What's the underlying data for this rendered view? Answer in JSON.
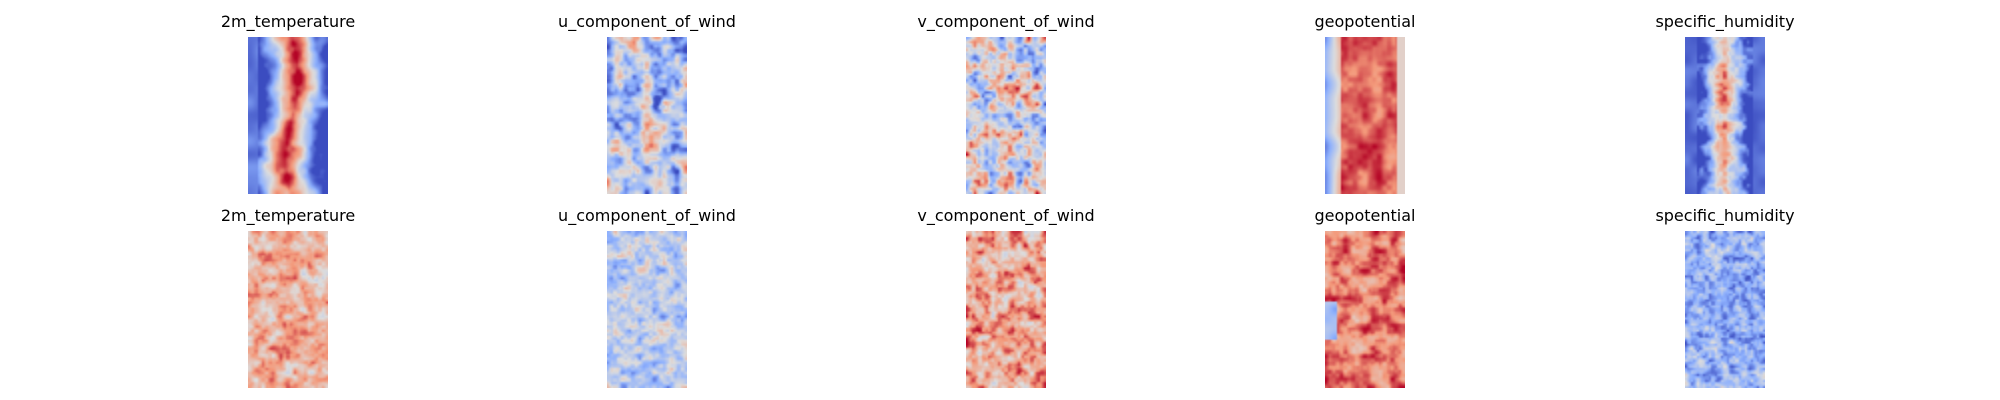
{
  "chart_data": {
    "type": "heatmap",
    "colormap": "coolwarm",
    "colors": {
      "low": "#3b4cc0",
      "mid": "#dddddd",
      "high": "#b40426"
    },
    "grid": false,
    "axes": "off",
    "rows": [
      {
        "panels": [
          {
            "title": "2m_temperature",
            "pattern": "temp"
          },
          {
            "title": "u_component_of_wind",
            "pattern": "uwind"
          },
          {
            "title": "v_component_of_wind",
            "pattern": "vwind"
          },
          {
            "title": "geopotential",
            "pattern": "geo"
          },
          {
            "title": "specific_humidity",
            "pattern": "hum"
          }
        ]
      },
      {
        "panels": [
          {
            "title": "2m_temperature",
            "pattern": "temp_pred"
          },
          {
            "title": "u_component_of_wind",
            "pattern": "uwind_pred"
          },
          {
            "title": "v_component_of_wind",
            "pattern": "vwind_pred"
          },
          {
            "title": "geopotential",
            "pattern": "geo_pred"
          },
          {
            "title": "specific_humidity",
            "pattern": "hum_pred"
          }
        ]
      }
    ]
  }
}
